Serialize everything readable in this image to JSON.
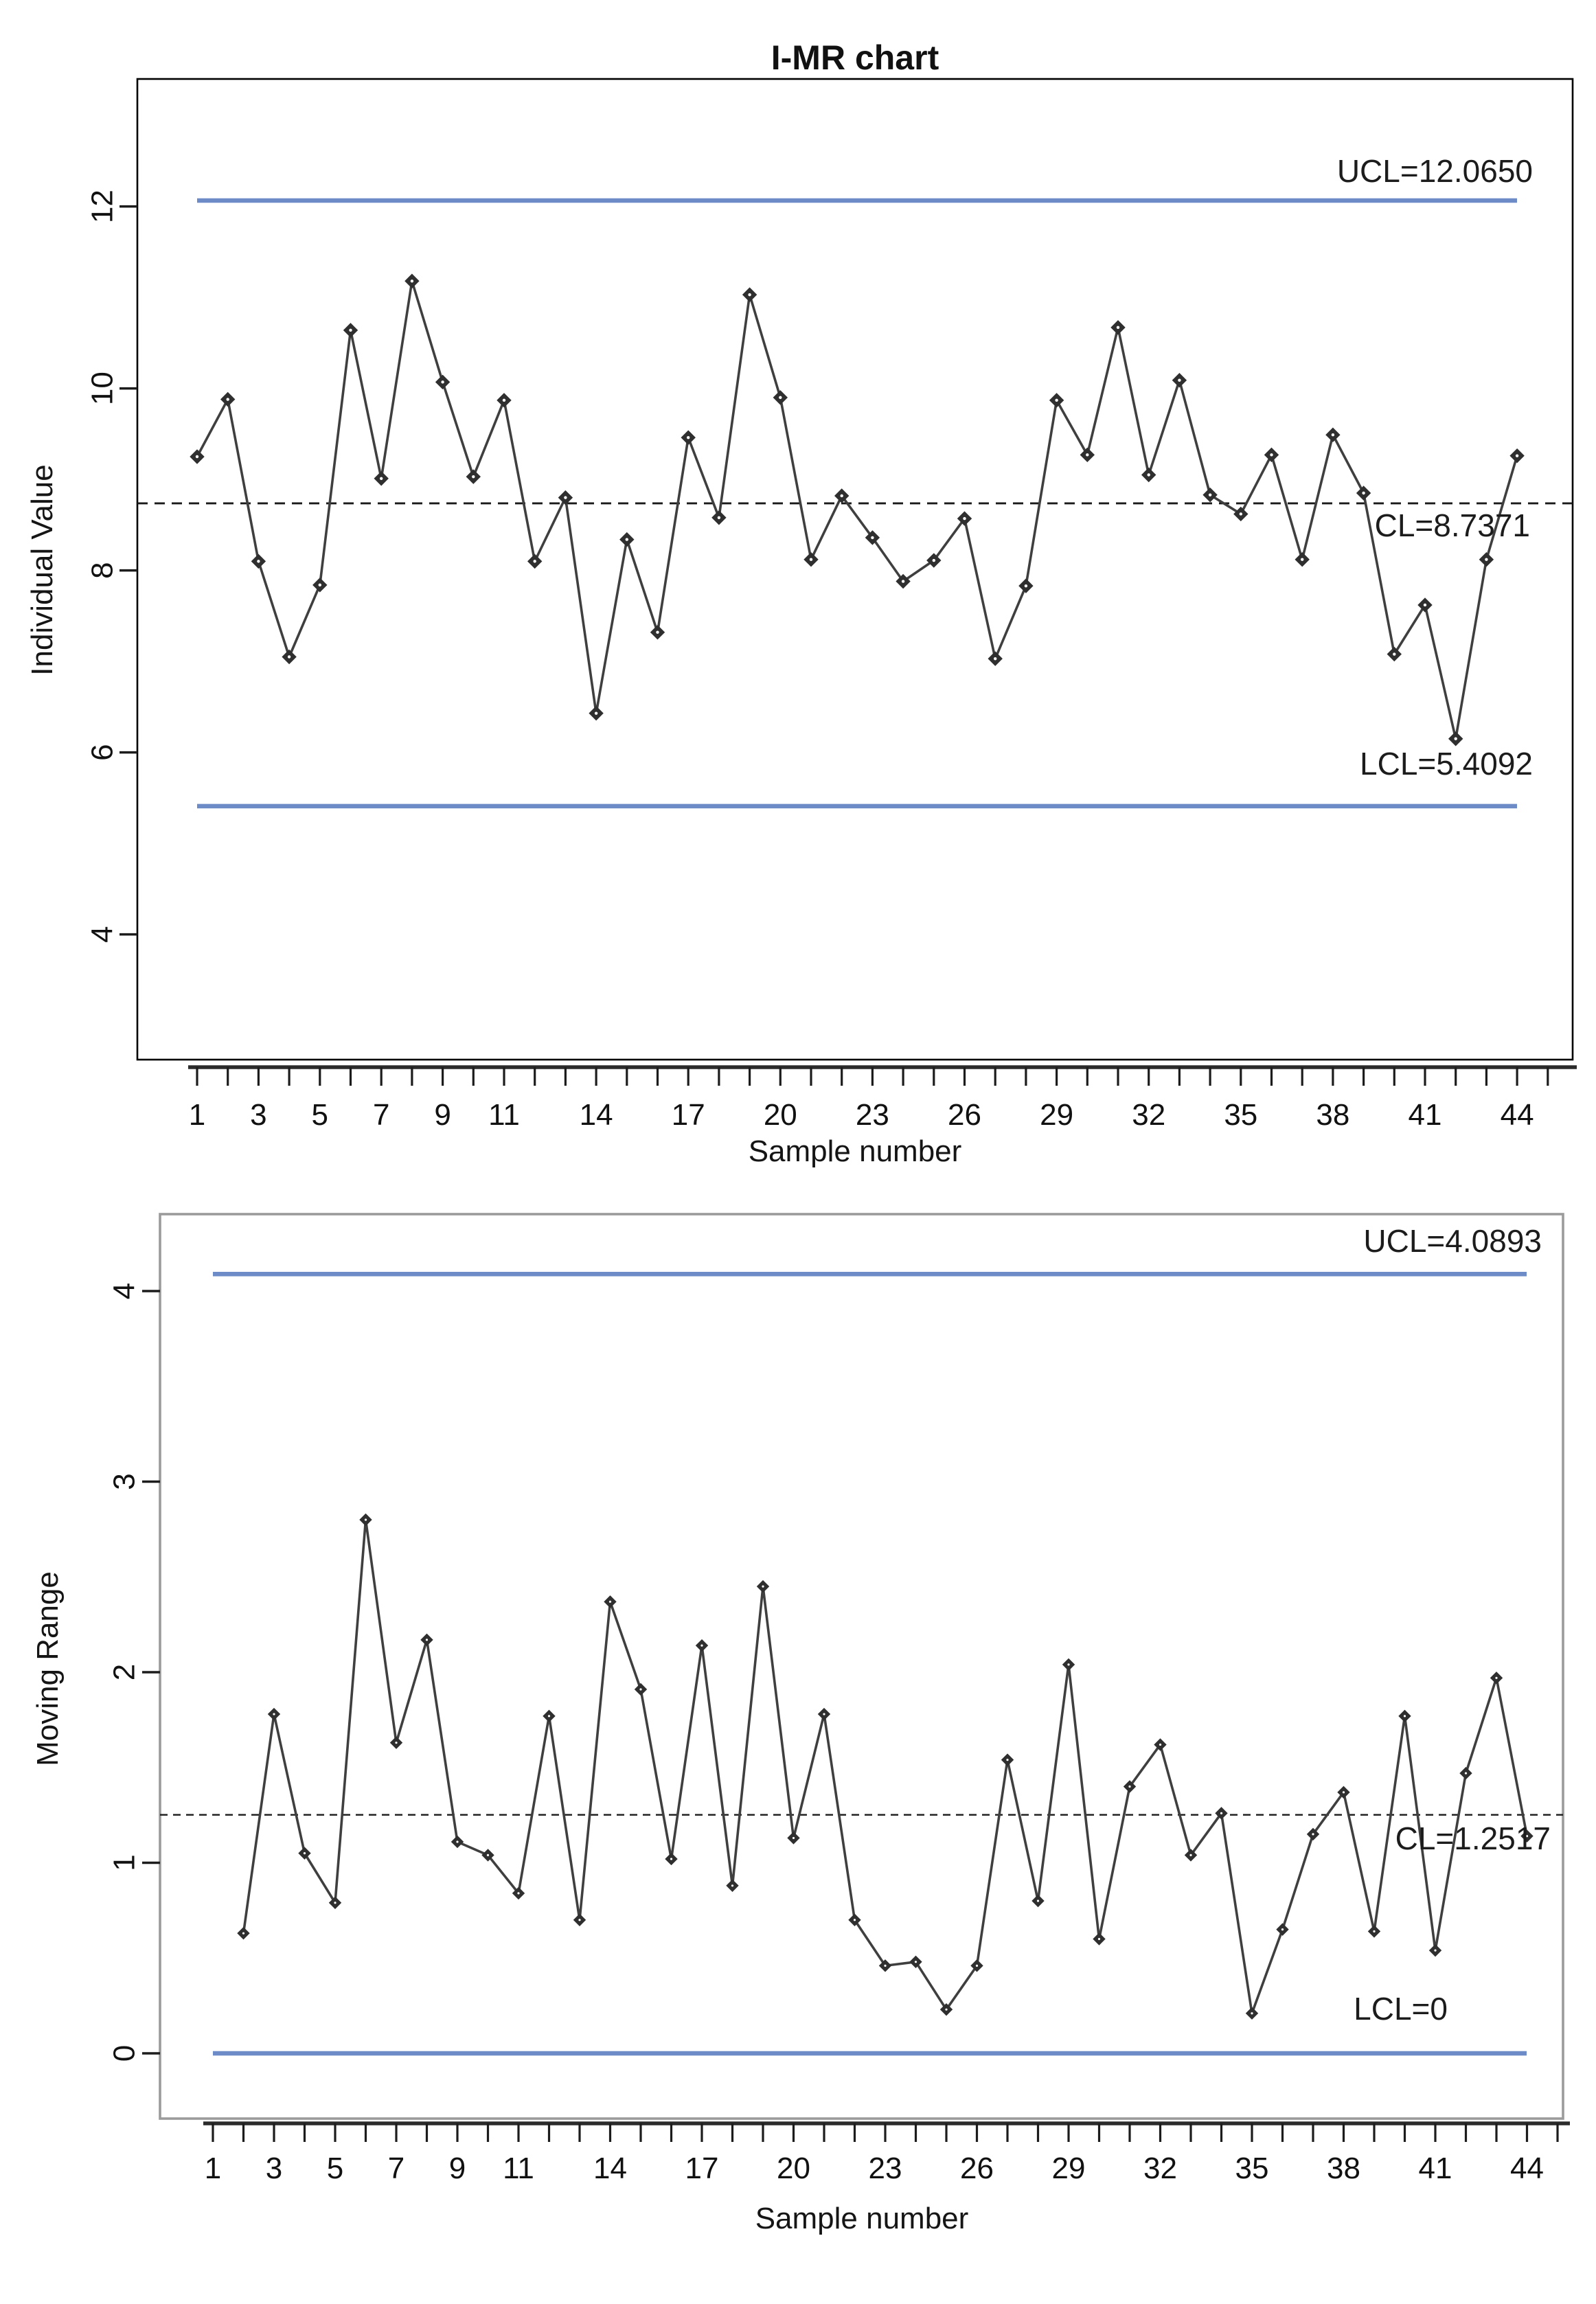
{
  "figure": {
    "title": "I-MR chart"
  },
  "colors": {
    "limit_line_blue": "#6d8cc7",
    "center_line_black": "#1a1a1a",
    "series_line": "#3f3f3f",
    "marker_fill": "#2f2f2f",
    "box_border_top_chart": "#000000",
    "box_border_bottom_chart": "#9b9b9b",
    "axis_black": "#1c1c1c",
    "text": "#111111"
  },
  "chart_data": [
    {
      "type": "line",
      "name": "individuals-chart",
      "title": "I-MR chart",
      "ylabel": "Individual Value",
      "xlabel": "Sample number",
      "x": [
        1,
        2,
        3,
        4,
        5,
        6,
        7,
        8,
        9,
        10,
        11,
        12,
        13,
        14,
        15,
        16,
        17,
        18,
        19,
        20,
        21,
        22,
        23,
        24,
        25,
        26,
        27,
        28,
        29,
        30,
        31,
        32,
        33,
        34,
        35,
        36,
        37,
        38,
        39,
        40,
        41,
        42,
        43,
        44
      ],
      "values": [
        9.25,
        9.88,
        8.1,
        7.05,
        7.84,
        10.64,
        9.01,
        11.18,
        10.07,
        9.03,
        9.87,
        8.1,
        8.8,
        6.43,
        8.34,
        7.32,
        9.46,
        8.58,
        11.03,
        9.9,
        8.12,
        8.82,
        8.36,
        7.88,
        8.11,
        8.57,
        7.03,
        7.83,
        9.87,
        9.27,
        10.67,
        9.05,
        10.09,
        8.83,
        8.62,
        9.27,
        8.12,
        9.49,
        8.85,
        7.08,
        7.62,
        6.15,
        8.12,
        9.26
      ],
      "control_limits": {
        "ucl": 12.065,
        "cl": 8.7371,
        "lcl": 5.4092
      },
      "labels": {
        "ucl": "UCL=12.0650",
        "cl": "CL=8.7371",
        "lcl": "LCL=5.4092"
      },
      "yticks": [
        4,
        6,
        8,
        10,
        12
      ],
      "xticks_labeled": [
        1,
        3,
        5,
        7,
        9,
        11,
        14,
        17,
        20,
        23,
        26,
        29,
        32,
        35,
        38,
        41,
        44
      ],
      "ylim": [
        2.6,
        13.4
      ],
      "grid": false,
      "legend": "none",
      "marker": "diamond"
    },
    {
      "type": "line",
      "name": "moving-range-chart",
      "title": "",
      "ylabel": "Moving Range",
      "xlabel": "Sample number",
      "x": [
        2,
        3,
        4,
        5,
        6,
        7,
        8,
        9,
        10,
        11,
        12,
        13,
        14,
        15,
        16,
        17,
        18,
        19,
        20,
        21,
        22,
        23,
        24,
        25,
        26,
        27,
        28,
        29,
        30,
        31,
        32,
        33,
        34,
        35,
        36,
        37,
        38,
        39,
        40,
        41,
        42,
        43,
        44
      ],
      "values": [
        0.63,
        1.78,
        1.05,
        0.79,
        2.8,
        1.63,
        2.17,
        1.11,
        1.04,
        0.84,
        1.77,
        0.7,
        2.37,
        1.91,
        1.02,
        2.14,
        0.88,
        2.45,
        1.13,
        1.78,
        0.7,
        0.46,
        0.48,
        0.23,
        0.46,
        1.54,
        0.8,
        2.04,
        0.6,
        1.4,
        1.62,
        1.04,
        1.26,
        0.21,
        0.65,
        1.15,
        1.37,
        0.64,
        1.77,
        0.54,
        1.47,
        1.97,
        1.14
      ],
      "control_limits": {
        "ucl": 4.0893,
        "cl": 1.2517,
        "lcl": 0
      },
      "labels": {
        "ucl": "UCL=4.0893",
        "cl": "CL=1.2517",
        "lcl": "LCL=0"
      },
      "yticks": [
        0,
        1,
        2,
        3,
        4
      ],
      "xticks_labeled": [
        1,
        3,
        5,
        7,
        9,
        11,
        14,
        17,
        20,
        23,
        26,
        29,
        32,
        35,
        38,
        41,
        44
      ],
      "ylim": [
        -0.34,
        4.4
      ],
      "grid": false,
      "legend": "none",
      "marker": "diamond"
    }
  ]
}
